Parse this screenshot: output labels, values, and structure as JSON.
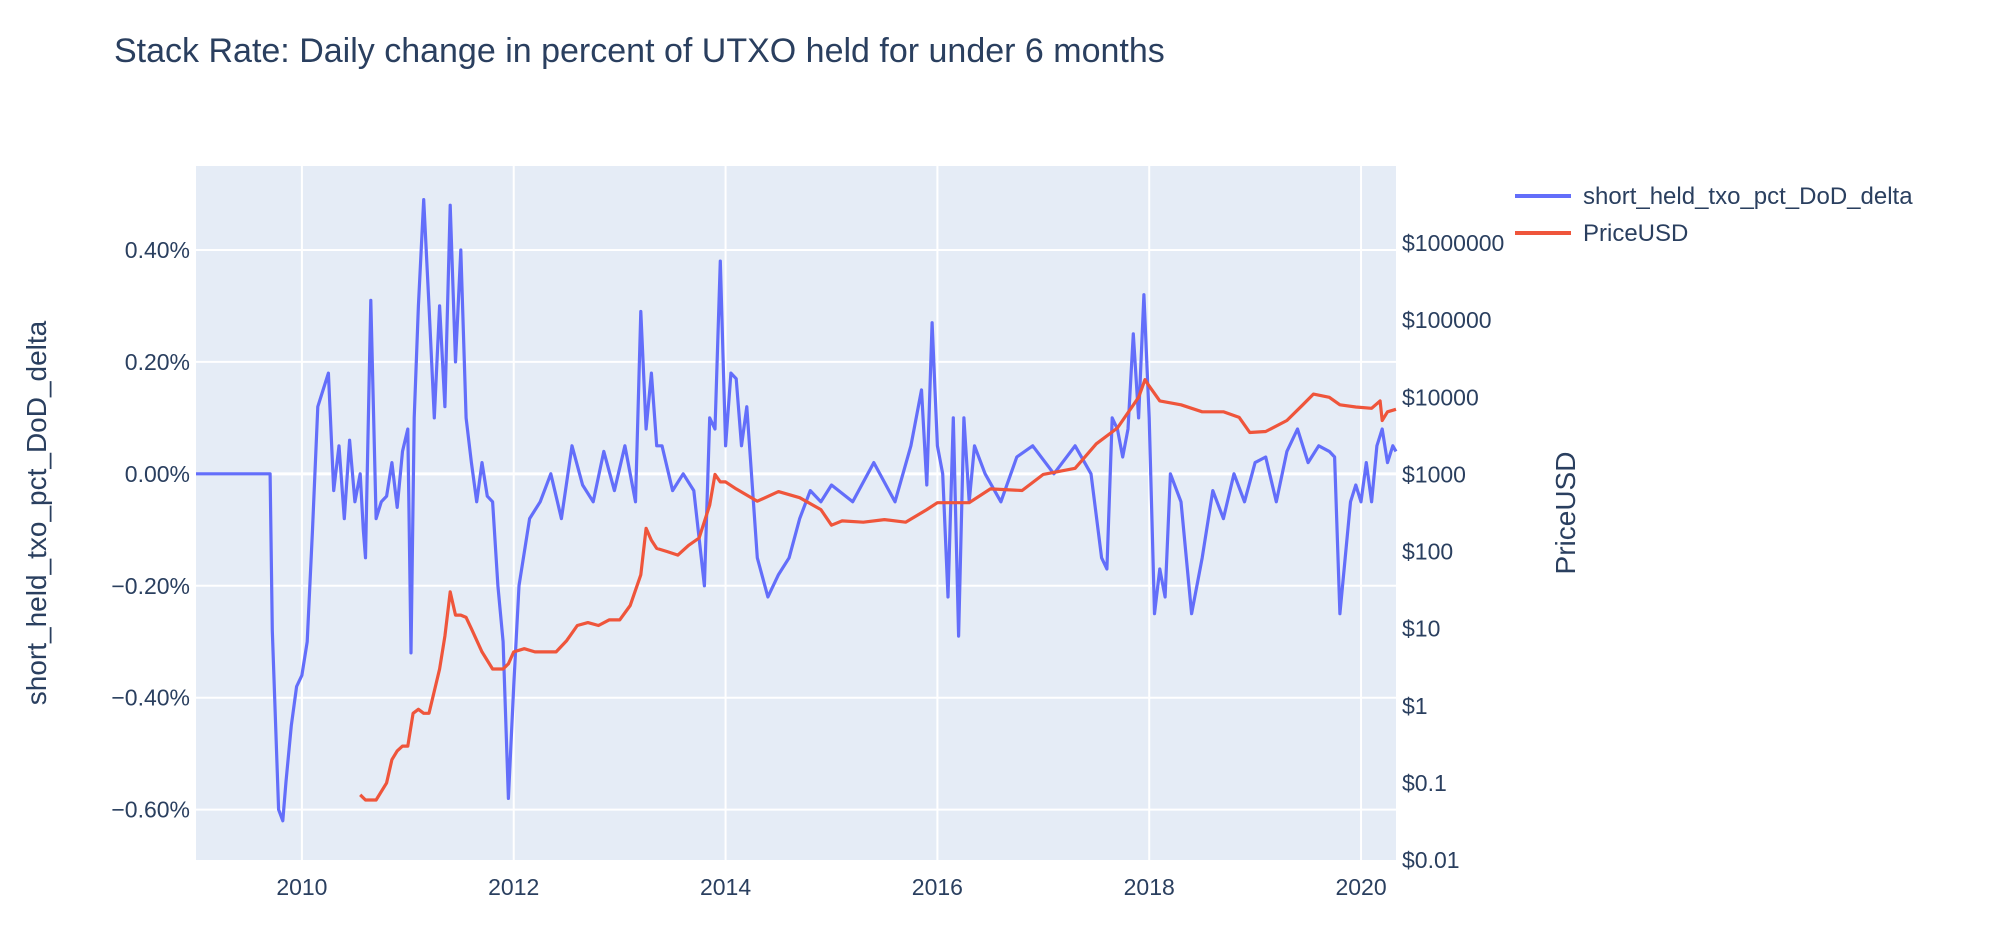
{
  "chart_data": {
    "type": "line",
    "title": "Stack Rate: Daily change in percent of UTXO held for under 6 months",
    "ylabel": "short_held_txo_pct_DoD_delta",
    "y2label": "PriceUSD",
    "xlim": [
      2009.0,
      2020.33
    ],
    "ylim": [
      -0.69,
      0.55
    ],
    "y2lim": [
      0.01,
      10000000
    ],
    "y2scale": "log",
    "grid": true,
    "legend_position": "top-right",
    "x_ticks": [
      "2010",
      "2012",
      "2014",
      "2016",
      "2018",
      "2020"
    ],
    "x_tick_values": [
      2010,
      2012,
      2014,
      2016,
      2018,
      2020
    ],
    "y_ticks": [
      "−0.60%",
      "−0.40%",
      "−0.20%",
      "0.00%",
      "0.20%",
      "0.40%"
    ],
    "y_tick_values": [
      -0.6,
      -0.4,
      -0.2,
      0.0,
      0.2,
      0.4
    ],
    "y2_ticks": [
      "$0.01",
      "$0.1",
      "$1",
      "$10",
      "$100",
      "$1000",
      "$10000",
      "$100000",
      "$1000000"
    ],
    "y2_tick_values": [
      0.01,
      0.1,
      1,
      10,
      100,
      1000,
      10000,
      100000,
      1000000
    ],
    "series": [
      {
        "name": "short_held_txo_pct_DoD_delta",
        "color": "#636efa",
        "axis": "y",
        "x": [
          2009.0,
          2009.7,
          2009.72,
          2009.78,
          2009.82,
          2009.85,
          2009.9,
          2009.95,
          2010.0,
          2010.05,
          2010.1,
          2010.15,
          2010.2,
          2010.25,
          2010.3,
          2010.35,
          2010.4,
          2010.45,
          2010.5,
          2010.55,
          2010.58,
          2010.6,
          2010.65,
          2010.7,
          2010.75,
          2010.8,
          2010.85,
          2010.9,
          2010.95,
          2011.0,
          2011.03,
          2011.06,
          2011.1,
          2011.15,
          2011.2,
          2011.25,
          2011.3,
          2011.35,
          2011.4,
          2011.45,
          2011.5,
          2011.55,
          2011.6,
          2011.65,
          2011.7,
          2011.75,
          2011.8,
          2011.85,
          2011.9,
          2011.95,
          2012.0,
          2012.05,
          2012.1,
          2012.15,
          2012.25,
          2012.35,
          2012.45,
          2012.55,
          2012.65,
          2012.75,
          2012.85,
          2012.95,
          2013.05,
          2013.15,
          2013.2,
          2013.25,
          2013.3,
          2013.35,
          2013.4,
          2013.5,
          2013.6,
          2013.7,
          2013.8,
          2013.85,
          2013.9,
          2013.95,
          2014.0,
          2014.05,
          2014.1,
          2014.15,
          2014.2,
          2014.3,
          2014.4,
          2014.5,
          2014.6,
          2014.7,
          2014.8,
          2014.9,
          2015.0,
          2015.2,
          2015.4,
          2015.6,
          2015.75,
          2015.85,
          2015.9,
          2015.95,
          2016.0,
          2016.05,
          2016.1,
          2016.15,
          2016.2,
          2016.25,
          2016.3,
          2016.35,
          2016.45,
          2016.6,
          2016.75,
          2016.9,
          2017.1,
          2017.3,
          2017.45,
          2017.55,
          2017.6,
          2017.65,
          2017.7,
          2017.75,
          2017.8,
          2017.85,
          2017.9,
          2017.95,
          2018.0,
          2018.05,
          2018.1,
          2018.15,
          2018.2,
          2018.3,
          2018.4,
          2018.5,
          2018.6,
          2018.7,
          2018.8,
          2018.9,
          2019.0,
          2019.1,
          2019.2,
          2019.3,
          2019.4,
          2019.5,
          2019.6,
          2019.7,
          2019.75,
          2019.8,
          2019.85,
          2019.9,
          2019.95,
          2020.0,
          2020.05,
          2020.1,
          2020.15,
          2020.2,
          2020.25,
          2020.3,
          2020.33
        ],
        "values": [
          0.0,
          0.0,
          -0.28,
          -0.6,
          -0.62,
          -0.55,
          -0.45,
          -0.38,
          -0.36,
          -0.3,
          -0.1,
          0.12,
          0.15,
          0.18,
          -0.03,
          0.05,
          -0.08,
          0.06,
          -0.05,
          0.0,
          -0.1,
          -0.15,
          0.31,
          -0.08,
          -0.05,
          -0.04,
          0.02,
          -0.06,
          0.04,
          0.08,
          -0.32,
          0.1,
          0.3,
          0.49,
          0.3,
          0.1,
          0.3,
          0.12,
          0.48,
          0.2,
          0.4,
          0.1,
          0.02,
          -0.05,
          0.02,
          -0.04,
          -0.05,
          -0.2,
          -0.3,
          -0.58,
          -0.38,
          -0.2,
          -0.14,
          -0.08,
          -0.05,
          0.0,
          -0.08,
          0.05,
          -0.02,
          -0.05,
          0.04,
          -0.03,
          0.05,
          -0.05,
          0.29,
          0.08,
          0.18,
          0.05,
          0.05,
          -0.03,
          0.0,
          -0.03,
          -0.2,
          0.1,
          0.08,
          0.38,
          0.05,
          0.18,
          0.17,
          0.05,
          0.12,
          -0.15,
          -0.22,
          -0.18,
          -0.15,
          -0.08,
          -0.03,
          -0.05,
          -0.02,
          -0.05,
          0.02,
          -0.05,
          0.05,
          0.15,
          -0.02,
          0.27,
          0.05,
          0.0,
          -0.22,
          0.1,
          -0.29,
          0.1,
          -0.05,
          0.05,
          0.0,
          -0.05,
          0.03,
          0.05,
          0.0,
          0.05,
          0.0,
          -0.15,
          -0.17,
          0.1,
          0.08,
          0.03,
          0.08,
          0.25,
          0.1,
          0.32,
          0.1,
          -0.25,
          -0.17,
          -0.22,
          0.0,
          -0.05,
          -0.25,
          -0.15,
          -0.03,
          -0.08,
          0.0,
          -0.05,
          0.02,
          0.03,
          -0.05,
          0.04,
          0.08,
          0.02,
          0.05,
          0.04,
          0.03,
          -0.25,
          -0.15,
          -0.05,
          -0.02,
          -0.05,
          0.02,
          -0.05,
          0.05,
          0.08,
          0.02,
          0.05,
          0.04
        ]
      },
      {
        "name": "PriceUSD",
        "color": "#ef553b",
        "axis": "y2",
        "x": [
          2010.55,
          2010.6,
          2010.7,
          2010.8,
          2010.85,
          2010.9,
          2010.95,
          2011.0,
          2011.05,
          2011.1,
          2011.15,
          2011.2,
          2011.3,
          2011.35,
          2011.4,
          2011.45,
          2011.5,
          2011.55,
          2011.6,
          2011.7,
          2011.8,
          2011.9,
          2011.95,
          2012.0,
          2012.1,
          2012.2,
          2012.3,
          2012.4,
          2012.5,
          2012.6,
          2012.7,
          2012.8,
          2012.9,
          2013.0,
          2013.1,
          2013.2,
          2013.25,
          2013.3,
          2013.35,
          2013.45,
          2013.55,
          2013.65,
          2013.75,
          2013.85,
          2013.9,
          2013.95,
          2014.0,
          2014.1,
          2014.3,
          2014.5,
          2014.7,
          2014.9,
          2015.0,
          2015.1,
          2015.3,
          2015.5,
          2015.7,
          2015.9,
          2016.0,
          2016.3,
          2016.5,
          2016.8,
          2017.0,
          2017.3,
          2017.5,
          2017.7,
          2017.9,
          2017.96,
          2018.0,
          2018.1,
          2018.3,
          2018.5,
          2018.7,
          2018.85,
          2018.95,
          2019.1,
          2019.3,
          2019.45,
          2019.55,
          2019.7,
          2019.8,
          2019.95,
          2020.1,
          2020.18,
          2020.2,
          2020.25,
          2020.33
        ],
        "values": [
          0.07,
          0.06,
          0.06,
          0.1,
          0.2,
          0.26,
          0.3,
          0.3,
          0.8,
          0.9,
          0.8,
          0.8,
          3.0,
          8.0,
          30.0,
          15.0,
          15.0,
          14.0,
          10.0,
          5.0,
          3.0,
          3.0,
          3.5,
          5.0,
          5.5,
          5.0,
          5.0,
          5.0,
          7.0,
          11.0,
          12.0,
          11.0,
          13.0,
          13.0,
          20.0,
          50.0,
          200.0,
          140.0,
          110.0,
          100.0,
          90.0,
          120.0,
          150.0,
          400.0,
          1000.0,
          800.0,
          800.0,
          650.0,
          450.0,
          600.0,
          500.0,
          350.0,
          220.0,
          250.0,
          240.0,
          260.0,
          240.0,
          350.0,
          430.0,
          430.0,
          650.0,
          620.0,
          1000.0,
          1200.0,
          2500.0,
          4000.0,
          10000.0,
          17000.0,
          14000.0,
          9000.0,
          8000.0,
          6500.0,
          6500.0,
          5500.0,
          3500.0,
          3600.0,
          5000.0,
          8000.0,
          11000.0,
          10000.0,
          8000.0,
          7500.0,
          7200.0,
          9000.0,
          5000.0,
          6500.0,
          7000.0
        ]
      }
    ]
  }
}
